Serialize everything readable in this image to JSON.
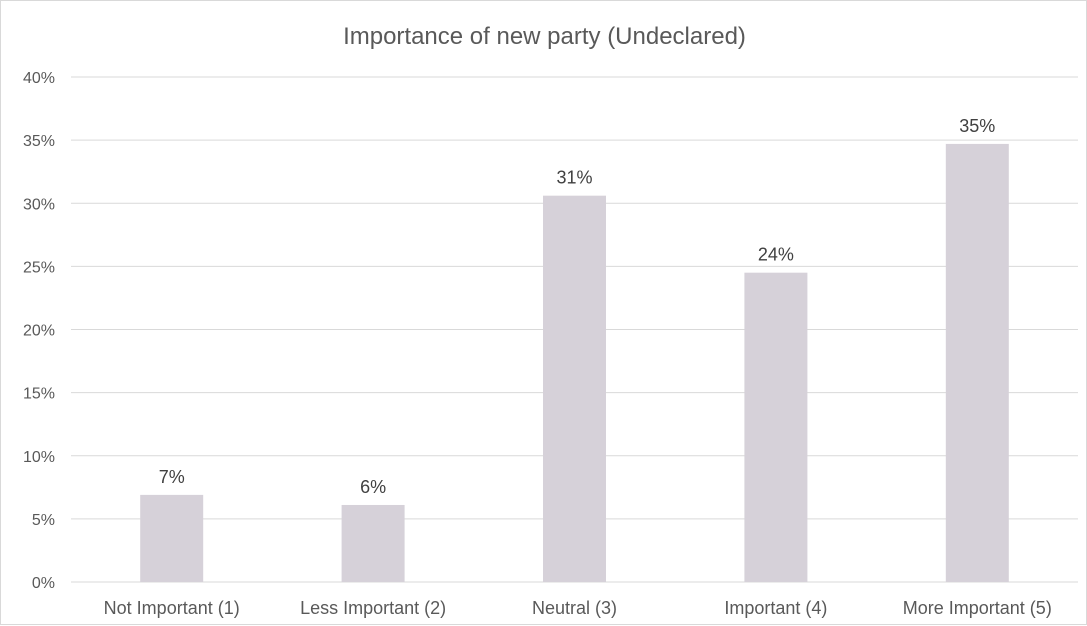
{
  "chart_data": {
    "type": "bar",
    "title": "Importance of new party (Undeclared)",
    "xlabel": "",
    "ylabel": "",
    "categories": [
      "Not Important (1)",
      "Less Important (2)",
      "Neutral (3)",
      "Important (4)",
      "More Important (5)"
    ],
    "values": [
      0.069,
      0.061,
      0.306,
      0.245,
      0.347
    ],
    "data_labels": [
      "7%",
      "6%",
      "31%",
      "24%",
      "35%"
    ],
    "ylim": [
      0,
      0.4
    ],
    "yticks": [
      0,
      0.05,
      0.1,
      0.15,
      0.2,
      0.25,
      0.3,
      0.35,
      0.4
    ],
    "ytick_labels": [
      "0%",
      "5%",
      "10%",
      "15%",
      "20%",
      "25%",
      "30%",
      "35%",
      "40%"
    ],
    "grid": true,
    "legend": "none",
    "colors": {
      "bar": "#d6d1d9",
      "grid": "#d9d9d9",
      "text": "#595959",
      "data_label": "#404040"
    }
  }
}
